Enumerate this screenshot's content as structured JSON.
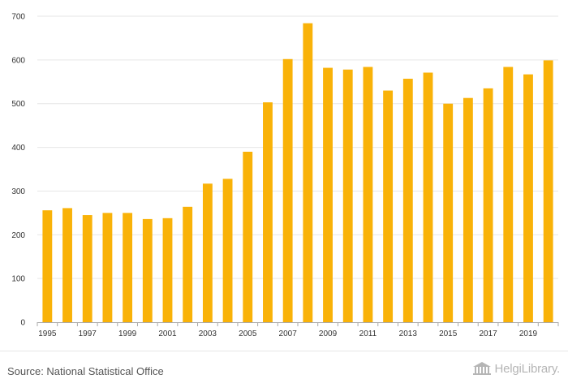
{
  "chart_data": {
    "type": "bar",
    "title": "",
    "xlabel": "",
    "ylabel": "",
    "categories": [
      "1995",
      "1996",
      "1997",
      "1998",
      "1999",
      "2000",
      "2001",
      "2002",
      "2003",
      "2004",
      "2005",
      "2006",
      "2007",
      "2008",
      "2009",
      "2010",
      "2011",
      "2012",
      "2013",
      "2014",
      "2015",
      "2016",
      "2017",
      "2018",
      "2019",
      "2020"
    ],
    "x_tick_labels": [
      "1995",
      "1997",
      "1999",
      "2001",
      "2003",
      "2005",
      "2007",
      "2009",
      "2011",
      "2013",
      "2015",
      "2017",
      "2019"
    ],
    "values": [
      256,
      261,
      245,
      250,
      250,
      236,
      238,
      264,
      317,
      328,
      390,
      503,
      602,
      684,
      582,
      578,
      584,
      530,
      557,
      571,
      500,
      513,
      535,
      584,
      567,
      599
    ],
    "ylim": [
      0,
      700
    ],
    "y_ticks": [
      0,
      100,
      200,
      300,
      400,
      500,
      600,
      700
    ],
    "grid": true,
    "bar_color": "#f9b208"
  },
  "footer": {
    "source": "Source: National Statistical Office",
    "logo_text": "HelgiLibrary."
  }
}
